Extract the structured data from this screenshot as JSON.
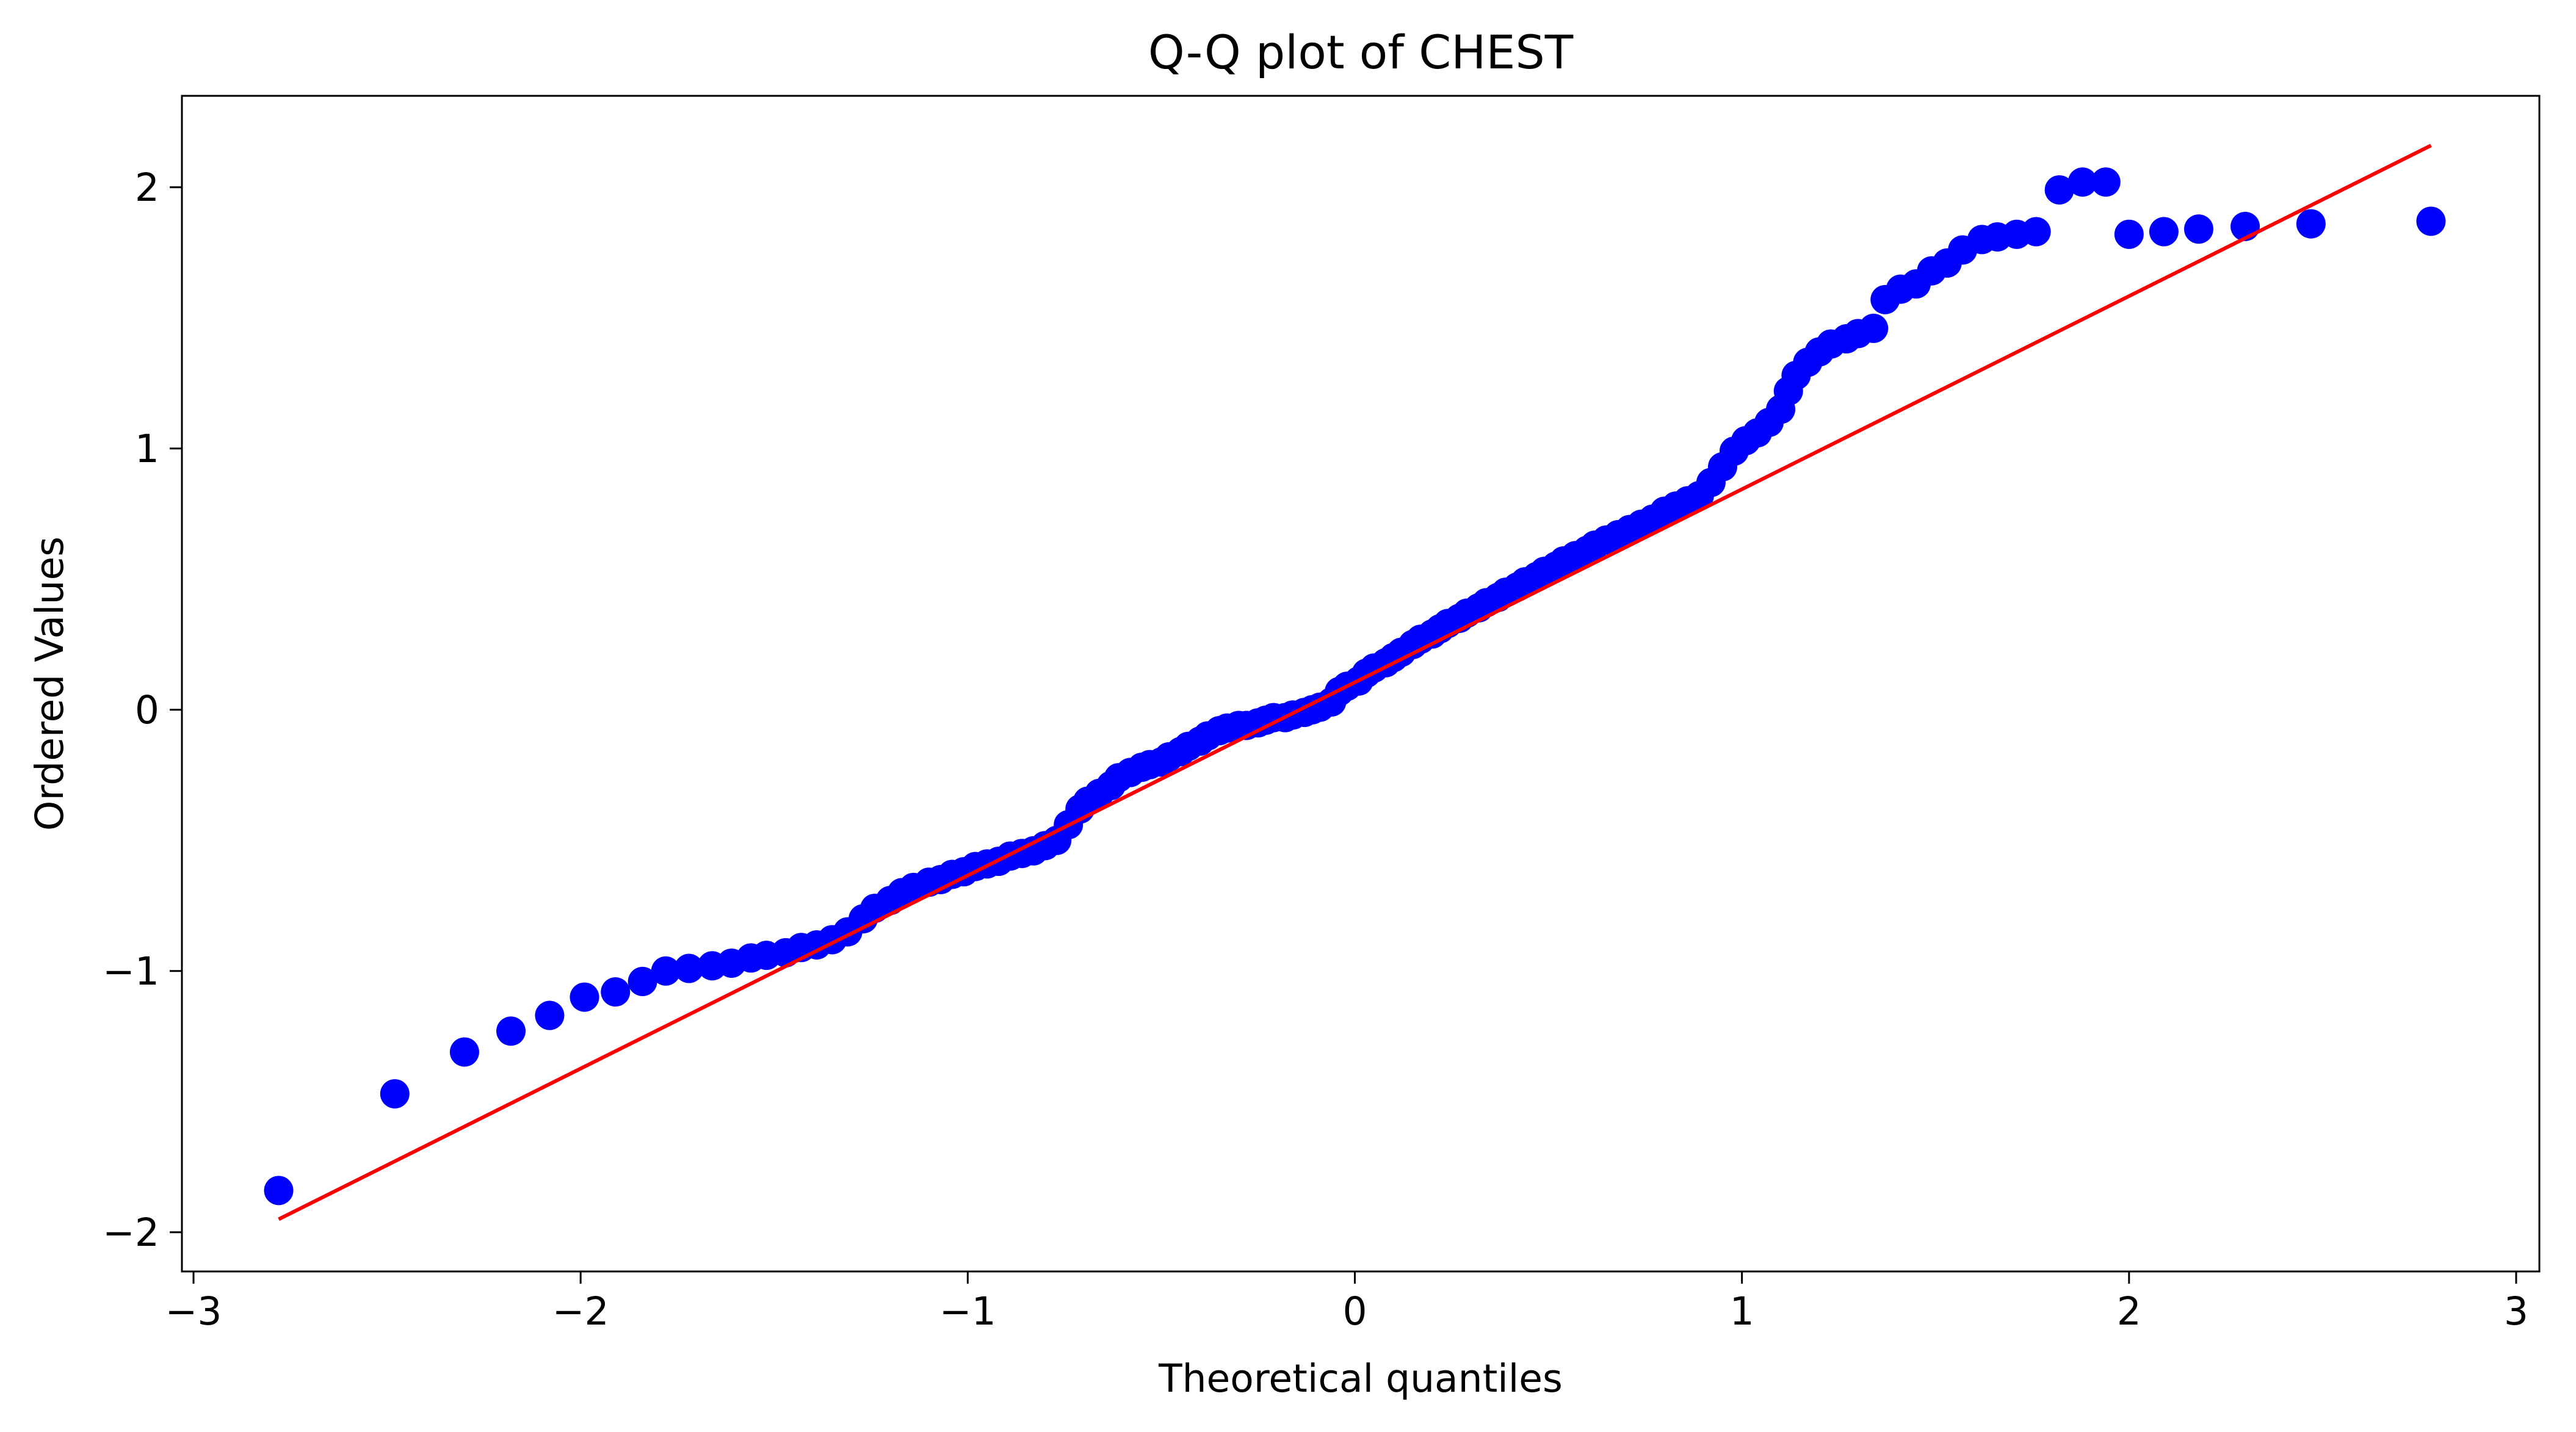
{
  "chart_data": {
    "type": "scatter",
    "title": "Q-Q plot of CHEST",
    "xlabel": "Theoretical quantiles",
    "ylabel": "Ordered Values",
    "xlim": [
      -3.03,
      3.06
    ],
    "ylim": [
      -2.15,
      2.35
    ],
    "xticks": [
      -3,
      -2,
      -1,
      0,
      1,
      2,
      3
    ],
    "yticks": [
      -2,
      -1,
      0,
      1,
      2
    ],
    "xtick_labels": [
      "−3",
      "−2",
      "−1",
      "0",
      "1",
      "2",
      "3"
    ],
    "ytick_labels": [
      "−2",
      "−1",
      "0",
      "1",
      "2"
    ],
    "grid": false,
    "legend": "none",
    "colors": {
      "points": "#0000ff",
      "fit_line": "#ff0000",
      "axes": "#000000",
      "background": "#ffffff"
    },
    "fit_line": {
      "x": [
        -2.78,
        2.78
      ],
      "y": [
        -1.95,
        2.16
      ]
    },
    "points": {
      "x": [
        -2.78,
        -2.48,
        -2.3,
        -2.18,
        -2.08,
        -1.99,
        -1.91,
        -1.84,
        -1.78,
        -1.72,
        -1.66,
        -1.61,
        -1.56,
        -1.52,
        -1.47,
        -1.43,
        -1.39,
        -1.35,
        -1.31,
        -1.27,
        -1.24,
        -1.2,
        -1.17,
        -1.14,
        -1.1,
        -1.07,
        -1.04,
        -1.01,
        -0.98,
        -0.95,
        -0.92,
        -0.89,
        -0.86,
        -0.83,
        -0.8,
        -0.77,
        -0.74,
        -0.71,
        -0.69,
        -0.66,
        -0.63,
        -0.61,
        -0.58,
        -0.55,
        -0.53,
        -0.5,
        -0.48,
        -0.45,
        -0.43,
        -0.4,
        -0.38,
        -0.35,
        -0.33,
        -0.3,
        -0.28,
        -0.25,
        -0.23,
        -0.21,
        -0.18,
        -0.16,
        -0.13,
        -0.11,
        -0.09,
        -0.06,
        -0.04,
        -0.02,
        0.01,
        0.03,
        0.05,
        0.08,
        0.1,
        0.12,
        0.15,
        0.17,
        0.2,
        0.22,
        0.24,
        0.27,
        0.29,
        0.32,
        0.34,
        0.37,
        0.39,
        0.42,
        0.44,
        0.47,
        0.49,
        0.52,
        0.54,
        0.57,
        0.6,
        0.62,
        0.65,
        0.68,
        0.71,
        0.74,
        0.77,
        0.8,
        0.83,
        0.86,
        0.89,
        0.92,
        0.95,
        0.98,
        1.01,
        1.04,
        1.07,
        1.1,
        1.12,
        1.14,
        1.17,
        1.2,
        1.23,
        1.27,
        1.3,
        1.34,
        1.37,
        1.41,
        1.45,
        1.49,
        1.53,
        1.57,
        1.62,
        1.66,
        1.71,
        1.76,
        1.82,
        1.88,
        1.94,
        2.0,
        2.09,
        2.18,
        2.3,
        2.47,
        2.78
      ],
      "y": [
        -1.84,
        -1.47,
        -1.31,
        -1.23,
        -1.17,
        -1.1,
        -1.08,
        -1.04,
        -1.0,
        -0.99,
        -0.98,
        -0.97,
        -0.95,
        -0.94,
        -0.93,
        -0.91,
        -0.9,
        -0.88,
        -0.85,
        -0.8,
        -0.76,
        -0.73,
        -0.7,
        -0.68,
        -0.66,
        -0.65,
        -0.63,
        -0.62,
        -0.6,
        -0.59,
        -0.58,
        -0.56,
        -0.55,
        -0.54,
        -0.52,
        -0.5,
        -0.44,
        -0.38,
        -0.35,
        -0.32,
        -0.29,
        -0.26,
        -0.24,
        -0.22,
        -0.21,
        -0.2,
        -0.18,
        -0.16,
        -0.14,
        -0.12,
        -0.1,
        -0.08,
        -0.07,
        -0.06,
        -0.06,
        -0.05,
        -0.04,
        -0.03,
        -0.03,
        -0.02,
        -0.01,
        0.0,
        0.01,
        0.03,
        0.07,
        0.09,
        0.11,
        0.14,
        0.16,
        0.18,
        0.2,
        0.22,
        0.25,
        0.27,
        0.29,
        0.31,
        0.33,
        0.35,
        0.37,
        0.39,
        0.41,
        0.43,
        0.45,
        0.47,
        0.49,
        0.51,
        0.53,
        0.55,
        0.57,
        0.59,
        0.61,
        0.63,
        0.65,
        0.67,
        0.69,
        0.71,
        0.73,
        0.76,
        0.78,
        0.8,
        0.82,
        0.87,
        0.93,
        0.99,
        1.03,
        1.06,
        1.1,
        1.15,
        1.22,
        1.28,
        1.33,
        1.37,
        1.4,
        1.42,
        1.44,
        1.46,
        1.57,
        1.61,
        1.63,
        1.68,
        1.71,
        1.76,
        1.8,
        1.81,
        1.82,
        1.83,
        1.99,
        2.02,
        2.02,
        1.82,
        1.83,
        1.84,
        1.85,
        1.86,
        1.87
      ],
      "point_radius_data_note": ""
    }
  }
}
